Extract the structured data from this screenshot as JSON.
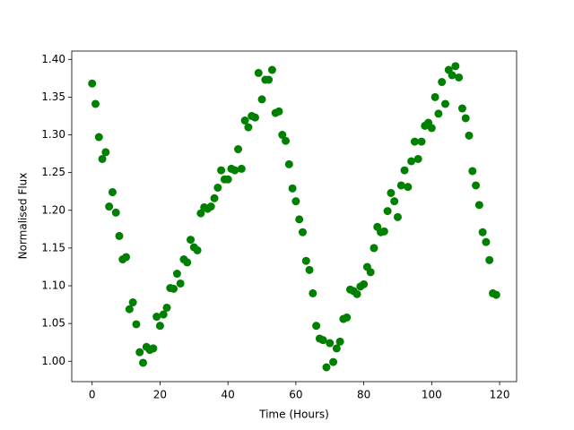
{
  "chart_data": {
    "type": "scatter",
    "xlabel": "Time (Hours)",
    "ylabel": "Normalised Flux",
    "color": "#008000",
    "x": [
      0,
      1,
      2,
      3,
      4,
      5,
      6,
      7,
      8,
      9,
      10,
      11,
      12,
      13,
      14,
      15,
      16,
      17,
      18,
      19,
      20,
      21,
      22,
      23,
      24,
      25,
      26,
      27,
      28,
      29,
      30,
      31,
      32,
      33,
      34,
      35,
      36,
      37,
      38,
      39,
      40,
      41,
      42,
      43,
      44,
      45,
      46,
      47,
      48,
      49,
      50,
      51,
      52,
      53,
      54,
      55,
      56,
      57,
      58,
      59,
      60,
      61,
      62,
      63,
      64,
      65,
      66,
      67,
      68,
      69,
      70,
      71,
      72,
      73,
      74,
      75,
      76,
      77,
      78,
      79,
      80,
      81,
      82,
      83,
      84,
      85,
      86,
      87,
      88,
      89,
      90,
      91,
      92,
      93,
      94,
      95,
      96,
      97,
      98,
      99,
      100,
      101,
      102,
      103,
      104,
      105,
      106,
      107,
      108,
      109,
      110,
      111,
      112,
      113,
      114,
      115,
      116,
      117,
      118,
      119
    ],
    "values": [
      1.368,
      1.341,
      1.297,
      1.268,
      1.277,
      1.205,
      1.224,
      1.197,
      1.166,
      1.135,
      1.138,
      1.069,
      1.078,
      1.049,
      1.012,
      0.998,
      1.019,
      1.015,
      1.017,
      1.059,
      1.047,
      1.062,
      1.071,
      1.097,
      1.096,
      1.116,
      1.103,
      1.135,
      1.131,
      1.161,
      1.151,
      1.147,
      1.196,
      1.204,
      1.202,
      1.205,
      1.216,
      1.23,
      1.253,
      1.241,
      1.241,
      1.255,
      1.253,
      1.281,
      1.255,
      1.319,
      1.31,
      1.325,
      1.323,
      1.382,
      1.347,
      1.373,
      1.373,
      1.386,
      1.329,
      1.331,
      1.3,
      1.292,
      1.261,
      1.229,
      1.212,
      1.188,
      1.171,
      1.133,
      1.121,
      1.09,
      1.047,
      1.03,
      1.028,
      0.992,
      1.024,
      0.999,
      1.017,
      1.026,
      1.056,
      1.058,
      1.095,
      1.093,
      1.089,
      1.099,
      1.102,
      1.125,
      1.118,
      1.15,
      1.178,
      1.171,
      1.172,
      1.199,
      1.223,
      1.212,
      1.191,
      1.233,
      1.253,
      1.231,
      1.265,
      1.291,
      1.268,
      1.291,
      1.312,
      1.316,
      1.309,
      1.35,
      1.328,
      1.37,
      1.341,
      1.386,
      1.379,
      1.391,
      1.376,
      1.335,
      1.322,
      1.299,
      1.252,
      1.233,
      1.207,
      1.171,
      1.158,
      1.134,
      1.09,
      1.088
    ],
    "xlim": [
      -6,
      125
    ],
    "xticks": [
      0,
      20,
      40,
      60,
      80,
      100,
      120
    ],
    "ylim": [
      0.973,
      1.411
    ],
    "yticks": [
      {
        "value": 1.0,
        "label": "1.00"
      },
      {
        "value": 1.05,
        "label": "1.05"
      },
      {
        "value": 1.1,
        "label": "1.10"
      },
      {
        "value": 1.15,
        "label": "1.15"
      },
      {
        "value": 1.2,
        "label": "1.20"
      },
      {
        "value": 1.25,
        "label": "1.25"
      },
      {
        "value": 1.3,
        "label": "1.30"
      },
      {
        "value": 1.35,
        "label": "1.35"
      },
      {
        "value": 1.4,
        "label": "1.40"
      }
    ]
  }
}
